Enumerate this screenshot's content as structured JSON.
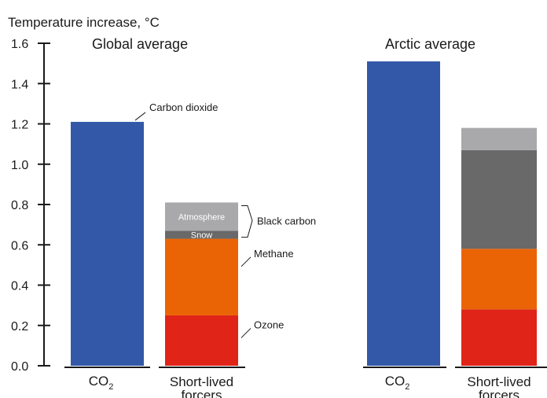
{
  "chart_data": {
    "type": "bar",
    "title": "",
    "ylabel": "Temperature increase, °C",
    "ylim": [
      0,
      1.6
    ],
    "yticks": [
      "0.0",
      "0.2",
      "0.4",
      "0.6",
      "0.8",
      "1.0",
      "1.2",
      "1.4",
      "1.6"
    ],
    "categories": [
      {
        "main": "CO",
        "sub": "2"
      },
      {
        "line1": "Short-lived",
        "line2": "forcers"
      }
    ],
    "panels": [
      {
        "title": "Global average",
        "co2": 1.21,
        "short_lived": [
          {
            "name": "Ozone",
            "value": 0.25,
            "color": "#e02418"
          },
          {
            "name": "Methane",
            "value": 0.38,
            "color": "#ea6405"
          },
          {
            "name": "Snow",
            "value": 0.04,
            "color": "#696969"
          },
          {
            "name": "Atmosphere",
            "value": 0.14,
            "color": "#a9a9ac"
          }
        ]
      },
      {
        "title": "Arctic average",
        "co2": 1.51,
        "short_lived": [
          {
            "name": "Ozone",
            "value": 0.28,
            "color": "#e02418"
          },
          {
            "name": "Methane",
            "value": 0.3,
            "color": "#ea6405"
          },
          {
            "name": "Snow",
            "value": 0.49,
            "color": "#696969"
          },
          {
            "name": "Atmosphere",
            "value": 0.11,
            "color": "#a9a9ac"
          }
        ]
      }
    ],
    "annotations": {
      "co2": "Carbon dioxide",
      "black_carbon": "Black carbon",
      "methane": "Methane",
      "ozone": "Ozone"
    },
    "co2_color": "#3358a8"
  }
}
